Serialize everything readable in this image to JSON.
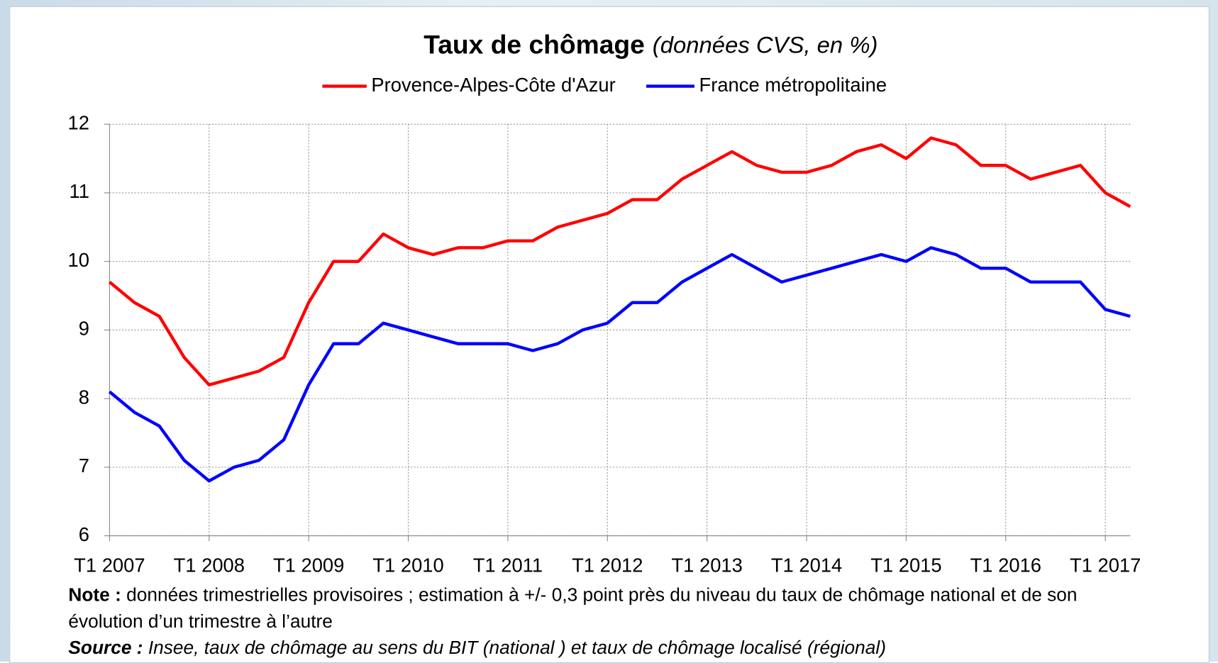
{
  "chart_data": {
    "type": "line",
    "title": "Taux de chômage",
    "subtitle": "(données CVS, en %)",
    "categories": [
      "T1 2007",
      null,
      null,
      null,
      "T1 2008",
      null,
      null,
      null,
      "T1 2009",
      null,
      null,
      null,
      "T1 2010",
      null,
      null,
      null,
      "T1 2011",
      null,
      null,
      null,
      "T1 2012",
      null,
      null,
      null,
      "T1 2013",
      null,
      null,
      null,
      "T1 2014",
      null,
      null,
      null,
      "T1 2015",
      null,
      null,
      null,
      "T1 2016",
      null,
      null,
      null,
      "T1 2017",
      null
    ],
    "series": [
      {
        "name": "Provence-Alpes-Côte d'Azur",
        "color": "#ff0000",
        "values": [
          9.7,
          9.4,
          9.2,
          8.6,
          8.2,
          8.3,
          8.4,
          8.6,
          9.4,
          10.0,
          10.0,
          10.4,
          10.2,
          10.1,
          10.2,
          10.2,
          10.3,
          10.3,
          10.5,
          10.6,
          10.7,
          10.9,
          10.9,
          11.2,
          11.4,
          11.6,
          11.4,
          11.3,
          11.3,
          11.4,
          11.6,
          11.7,
          11.5,
          11.8,
          11.7,
          11.4,
          11.4,
          11.2,
          11.3,
          11.4,
          11.0,
          10.8
        ]
      },
      {
        "name": "France métropolitaine",
        "color": "#0000ff",
        "values": [
          8.1,
          7.8,
          7.6,
          7.1,
          6.8,
          7.0,
          7.1,
          7.4,
          8.2,
          8.8,
          8.8,
          9.1,
          9.0,
          8.9,
          8.8,
          8.8,
          8.8,
          8.7,
          8.8,
          9.0,
          9.1,
          9.4,
          9.4,
          9.7,
          9.9,
          10.1,
          9.9,
          9.7,
          9.8,
          9.9,
          10.0,
          10.1,
          10.0,
          10.2,
          10.1,
          9.9,
          9.9,
          9.7,
          9.7,
          9.7,
          9.3,
          9.2
        ]
      }
    ],
    "ylim": [
      6,
      12
    ],
    "yticks": [
      6,
      7,
      8,
      9,
      10,
      11,
      12
    ],
    "grid": true,
    "legend": "top",
    "notes": [
      {
        "label": "Note :",
        "text": "données trimestrielles provisoires ; estimation à +/- 0,3 point près du niveau du taux de chômage national et de son évolution d’un trimestre à l’autre"
      },
      {
        "label": "Source :",
        "text": "Insee, taux de chômage au sens du BIT (national ) et taux de chômage localisé (régional)"
      }
    ]
  }
}
